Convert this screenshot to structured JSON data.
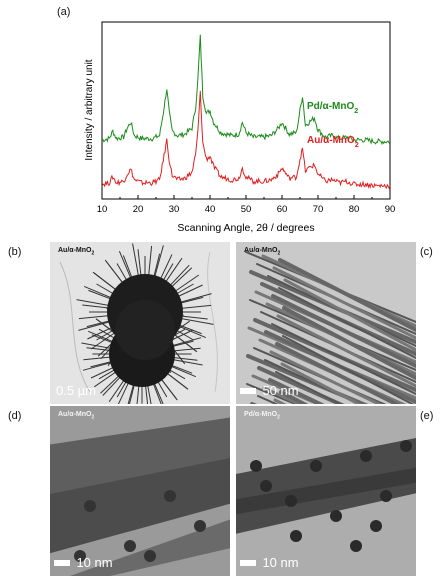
{
  "panels": {
    "a": "(a)",
    "b": "(b)",
    "c": "(c)",
    "d": "(d)",
    "e": "(e)"
  },
  "chart_data": {
    "type": "line",
    "xlabel": "Scanning Angle, 2θ / degrees",
    "ylabel": "Intensity / arbitrary unit",
    "xlim": [
      10,
      90
    ],
    "xticks": [
      10,
      20,
      30,
      40,
      50,
      60,
      70,
      80,
      90
    ],
    "series": [
      {
        "name": "Pd/α-MnO2",
        "color": "#1a8c1a",
        "x": [
          10,
          12,
          13,
          14,
          16,
          17,
          18,
          19,
          21,
          24,
          26,
          27,
          28,
          28.7,
          29.5,
          31,
          33,
          35,
          36,
          36.6,
          37.3,
          38,
          39,
          40,
          41,
          43,
          46,
          48,
          49,
          50,
          52,
          55,
          57,
          59,
          60,
          62,
          64,
          65,
          65.7,
          66.5,
          68,
          69,
          70,
          72,
          74,
          76,
          78,
          80,
          83,
          86,
          90
        ],
        "values": [
          0.3,
          0.31,
          0.36,
          0.31,
          0.32,
          0.38,
          0.42,
          0.33,
          0.31,
          0.31,
          0.33,
          0.48,
          0.65,
          0.48,
          0.36,
          0.33,
          0.34,
          0.38,
          0.52,
          0.7,
          1.0,
          0.6,
          0.48,
          0.5,
          0.42,
          0.35,
          0.33,
          0.34,
          0.42,
          0.35,
          0.32,
          0.32,
          0.33,
          0.38,
          0.42,
          0.34,
          0.35,
          0.5,
          0.6,
          0.4,
          0.43,
          0.45,
          0.37,
          0.32,
          0.33,
          0.31,
          0.32,
          0.3,
          0.3,
          0.29,
          0.29
        ]
      },
      {
        "name": "Au/α-MnO2",
        "color": "#e02020",
        "x": [
          10,
          12,
          13,
          14,
          16,
          17,
          18,
          19,
          21,
          24,
          26,
          27,
          28,
          28.7,
          29.5,
          31,
          33,
          35,
          36,
          36.6,
          37.3,
          38,
          39,
          40,
          41,
          43,
          46,
          48,
          49,
          50,
          52,
          55,
          57,
          59,
          60,
          62,
          64,
          65,
          65.7,
          66.5,
          68,
          69,
          70,
          72,
          74,
          76,
          78,
          80,
          83,
          86,
          90
        ],
        "values": [
          0.0,
          0.01,
          0.05,
          0.01,
          0.02,
          0.07,
          0.1,
          0.03,
          0.01,
          0.01,
          0.03,
          0.16,
          0.3,
          0.16,
          0.06,
          0.03,
          0.04,
          0.08,
          0.2,
          0.35,
          0.62,
          0.28,
          0.17,
          0.19,
          0.12,
          0.05,
          0.03,
          0.04,
          0.11,
          0.05,
          0.02,
          0.02,
          0.03,
          0.07,
          0.11,
          0.04,
          0.05,
          0.17,
          0.24,
          0.09,
          0.12,
          0.13,
          0.07,
          0.02,
          0.03,
          0.01,
          0.02,
          0.0,
          0.0,
          -0.01,
          -0.01
        ]
      }
    ]
  },
  "images": {
    "b": {
      "label": "Au/α-MnO2",
      "scale": "0.5 µm"
    },
    "c": {
      "label": "Au/α-MnO2",
      "scale": "50 nm"
    },
    "d": {
      "label": "Au/α-MnO2",
      "scale": "10 nm"
    },
    "e": {
      "label": "Pd/α-MnO2",
      "scale": "10 nm"
    }
  }
}
